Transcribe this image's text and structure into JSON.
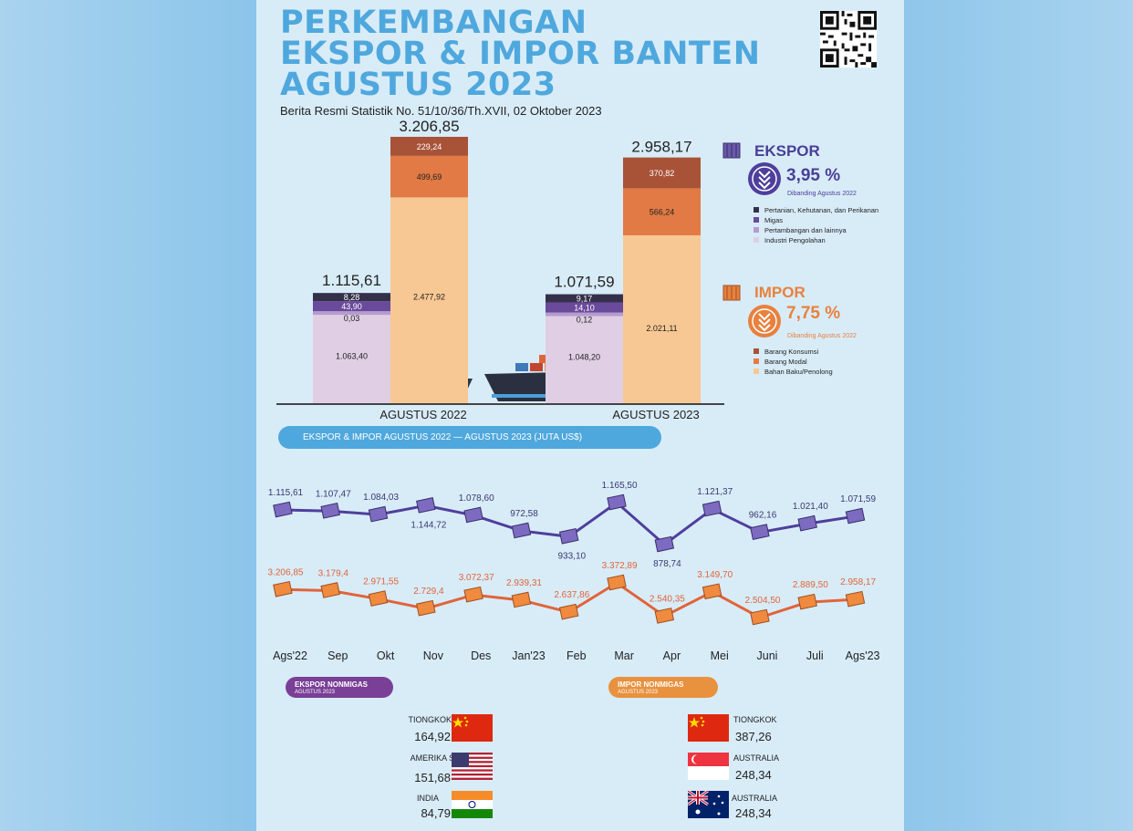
{
  "header": {
    "title_lines": [
      "PERKEMBANGAN",
      "EKSPOR & IMPOR BANTEN",
      "AGUSTUS 2023"
    ],
    "subtitle": "Berita Resmi Statistik No. 51/10/36/Th.XVII, 02 Oktober 2023"
  },
  "summary": {
    "ekspor": {
      "label": "EKSPOR",
      "change": "3,95 %",
      "note": "Dibanding Agustus 2022",
      "direction": "down",
      "color": "#5a4ba0",
      "legend": [
        "Pertanian, Kehutanan, dan Perikanan",
        "Migas",
        "Pertambangan dan lainnya",
        "Industri Pengolahan"
      ],
      "legend_colors": [
        "#35304a",
        "#6a4a9a",
        "#b79bd0",
        "#e0cfe4"
      ]
    },
    "impor": {
      "label": "IMPOR",
      "change": "7,75 %",
      "note": "Dibanding Agustus 2022",
      "direction": "down",
      "color": "#e8813e",
      "legend": [
        "Barang Konsumsi",
        "Barang Modal",
        "Bahan Baku/Penolong"
      ],
      "legend_colors": [
        "#a85238",
        "#e27a45",
        "#f7c893"
      ]
    }
  },
  "chart_data": [
    {
      "type": "bar",
      "stacked": true,
      "categories": [
        "AGUSTUS 2022",
        "AGUSTUS 2023"
      ],
      "ekspor": {
        "totals": [
          "1.115,61",
          "1.071,59"
        ],
        "total_values": [
          1115.61,
          1071.59
        ],
        "segments": [
          {
            "name": "Industri Pengolahan",
            "values": [
              1063.4,
              1048.2
            ],
            "labels": [
              "1.063,40",
              "1.048,20"
            ]
          },
          {
            "name": "Pertambangan dan lainnya",
            "values": [
              0.03,
              0.12
            ],
            "labels": [
              "0,03",
              "0,12"
            ]
          },
          {
            "name": "Migas",
            "values": [
              43.9,
              14.1
            ],
            "labels": [
              "43,90",
              "14,10"
            ]
          },
          {
            "name": "Pertanian, Kehutanan, dan Perikanan",
            "values": [
              8.28,
              9.17
            ],
            "labels": [
              "8,28",
              "9,17"
            ]
          }
        ]
      },
      "impor": {
        "totals": [
          "3.206,85",
          "2.958,17"
        ],
        "total_values": [
          3206.85,
          2958.17
        ],
        "segments": [
          {
            "name": "Bahan Baku/Penolong",
            "values": [
              2477.92,
              2021.11
            ],
            "labels": [
              "2.477,92",
              "2.021,11"
            ]
          },
          {
            "name": "Barang Modal",
            "values": [
              499.69,
              566.24
            ],
            "labels": [
              "499,69",
              "566,24"
            ]
          },
          {
            "name": "Barang Konsumsi",
            "values": [
              229.24,
              370.82
            ],
            "labels": [
              "229,24",
              "370,82"
            ]
          }
        ]
      }
    },
    {
      "type": "line",
      "title": "EKSPOR & IMPOR AGUSTUS 2022 — AGUSTUS 2023 (JUTA US$)",
      "x": [
        "Ags'22",
        "Sep",
        "Okt",
        "Nov",
        "Des",
        "Jan'23",
        "Feb",
        "Mar",
        "Apr",
        "Mei",
        "Juni",
        "Juli",
        "Ags'23"
      ],
      "series": [
        {
          "name": "EKSPOR",
          "color": "#5a4ba0",
          "values": [
            1115.61,
            1107.47,
            1084.03,
            1144.72,
            1078.6,
            972.58,
            933.1,
            1165.5,
            878.74,
            1121.37,
            962.16,
            1021.4,
            1071.59
          ],
          "labels": [
            "1.115,61",
            "1.107,47",
            "1.084,03",
            "1.144,72",
            "1.078,60",
            "972,58",
            "933,10",
            "1.165,50",
            "878,74",
            "1.121,37",
            "962,16",
            "1.021,40",
            "1.071,59"
          ]
        },
        {
          "name": "IMPOR",
          "color": "#e0643a",
          "values": [
            3206.85,
            3179.4,
            2971.55,
            2729.4,
            3072.37,
            2939.31,
            2637.86,
            3372.89,
            2540.35,
            3149.7,
            2504.5,
            2889.5,
            2958.17
          ],
          "labels": [
            "3.206,85",
            "3.179,4",
            "2.971,55",
            "2.729,4",
            "3.072,37",
            "2.939,31",
            "2.637,86",
            "3.372,89",
            "2.540,35",
            "3.149,70",
            "2.504,50",
            "2.889,50",
            "2.958,17"
          ]
        }
      ]
    }
  ],
  "nonmigas": {
    "ekspor": {
      "title": "EKSPOR NONMIGAS",
      "sub": "AGUSTUS 2023",
      "items": [
        {
          "country": "TIONGKOK",
          "value": "164,92",
          "flag": "china-flag"
        },
        {
          "country": "AMERIKA SERIKAT",
          "value": "151,68",
          "flag": "usa-flag"
        },
        {
          "country": "INDIA",
          "value": "84,79",
          "flag": "india-flag"
        }
      ]
    },
    "impor": {
      "title": "IMPOR NONMIGAS",
      "sub": "AGUSTUS 2023",
      "items": [
        {
          "country": "TIONGKOK",
          "value": "387,26",
          "flag": "china-flag"
        },
        {
          "country": "AUSTRALIA",
          "value": "248,34",
          "flag": "singapore-flag"
        },
        {
          "country": "AUSTRALIA",
          "value": "248,34",
          "flag": "australia-flag"
        }
      ]
    }
  }
}
